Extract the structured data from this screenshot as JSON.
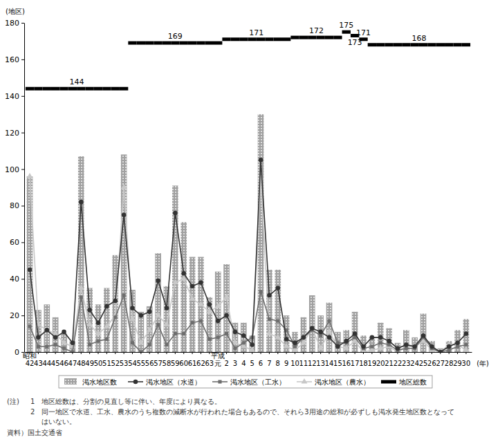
{
  "chart_data": {
    "type": "combo",
    "ylabel": "(地区)",
    "xlabel": "(年)",
    "categories": [
      "昭和\n42",
      "43",
      "44",
      "45",
      "46",
      "47",
      "48",
      "49",
      "50",
      "51",
      "52",
      "53",
      "54",
      "55",
      "56",
      "57",
      "58",
      "59",
      "60",
      "61",
      "62",
      "63",
      "平成\n元",
      "2",
      "3",
      "4",
      "5",
      "6",
      "7",
      "8",
      "9",
      "10",
      "11",
      "12",
      "13",
      "14",
      "15",
      "16",
      "17",
      "18",
      "19",
      "20",
      "21",
      "22",
      "23",
      "24",
      "25",
      "26",
      "27",
      "28",
      "29",
      "30"
    ],
    "ylim": [
      0,
      180
    ],
    "yticks": [
      0,
      20,
      40,
      60,
      80,
      100,
      120,
      140,
      160,
      180
    ],
    "grid": false,
    "legend": "bottom",
    "series": [
      {
        "name": "渇水地区数",
        "type": "bar",
        "color": "#a0a0a0",
        "values": [
          96,
          23,
          26,
          19,
          10,
          6,
          107,
          35,
          26,
          35,
          53,
          108,
          34,
          22,
          25,
          54,
          36,
          91,
          71,
          52,
          52,
          30,
          44,
          48,
          16,
          16,
          9,
          130,
          45,
          45,
          20,
          11,
          19,
          31,
          20,
          27,
          11,
          12,
          22,
          9,
          8,
          16,
          13,
          5,
          12,
          8,
          21,
          6,
          2,
          6,
          12,
          18
        ]
      },
      {
        "name": "渇水地区（水道）",
        "type": "line",
        "color": "#333333",
        "marker": "circle",
        "values": [
          45,
          8,
          12,
          8,
          11,
          5,
          82,
          23,
          16,
          25,
          28,
          75,
          24,
          20,
          22,
          39,
          24,
          76,
          43,
          36,
          38,
          26,
          17,
          20,
          11,
          9,
          4,
          105,
          31,
          35,
          7,
          5,
          8,
          13,
          11,
          8,
          3,
          6,
          10,
          3,
          8,
          8,
          6,
          2,
          4,
          3,
          9,
          3,
          0,
          3,
          5,
          10
        ]
      },
      {
        "name": "渇水地区（工水）",
        "type": "line",
        "color": "#6e6e6e",
        "marker": "square",
        "values": [
          14,
          3,
          3,
          4,
          2,
          0,
          30,
          4,
          6,
          7,
          19,
          31,
          5,
          0,
          4,
          15,
          4,
          10,
          10,
          16,
          17,
          7,
          8,
          10,
          2,
          5,
          8,
          33,
          18,
          17,
          12,
          3,
          8,
          12,
          9,
          17,
          5,
          5,
          8,
          2,
          3,
          5,
          4,
          1,
          2,
          2,
          8,
          2,
          0,
          1,
          3,
          4
        ]
      },
      {
        "name": "渇水地区（農水）",
        "type": "line",
        "color": "#c8c8c8",
        "marker": "triangle",
        "values": [
          96,
          15,
          12,
          10,
          5,
          3,
          35,
          15,
          10,
          14,
          20,
          90,
          18,
          5,
          12,
          20,
          15,
          38,
          40,
          29,
          26,
          22,
          25,
          30,
          5,
          3,
          1,
          95,
          10,
          8,
          3,
          1,
          5,
          13,
          2,
          11,
          3,
          2,
          6,
          0,
          1,
          2,
          3,
          0,
          3,
          3,
          6,
          1,
          0,
          4,
          4,
          1
        ]
      },
      {
        "name": "地区総数",
        "type": "step",
        "color": "#000000",
        "data_labels": true,
        "values": [
          144,
          144,
          144,
          144,
          144,
          144,
          144,
          144,
          144,
          144,
          144,
          144,
          169,
          169,
          169,
          169,
          169,
          169,
          169,
          169,
          169,
          169,
          169,
          171,
          171,
          171,
          171,
          171,
          171,
          171,
          171,
          172,
          172,
          172,
          172,
          172,
          172,
          175,
          173,
          171,
          168,
          168,
          168,
          168,
          168,
          168,
          168,
          168,
          168,
          168,
          168,
          168
        ]
      }
    ],
    "annotations": [
      "(注)",
      "1　地区総数は、分割の見直し等に伴い、年度により異なる。",
      "2　同一地区で水道、工水、農水のうち複数の減断水が行われた場合もあるので、それら3用途の総和が必ずしも渇水発生地区数となって",
      "はいない。",
      "資料）国土交通省"
    ]
  }
}
